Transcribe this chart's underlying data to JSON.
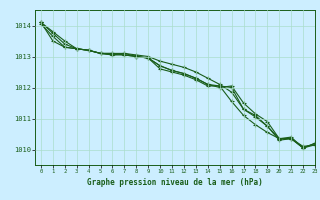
{
  "x": [
    0,
    1,
    2,
    3,
    4,
    5,
    6,
    7,
    8,
    9,
    10,
    11,
    12,
    13,
    14,
    15,
    16,
    17,
    18,
    19,
    20,
    21,
    22,
    23
  ],
  "line1": [
    1014.1,
    1013.8,
    1013.5,
    1013.25,
    1013.2,
    1013.1,
    1013.05,
    1013.1,
    1013.0,
    1012.95,
    1012.6,
    1012.5,
    1012.4,
    1012.25,
    1012.05,
    1012.05,
    1012.0,
    1011.3,
    1011.1,
    1010.75,
    1010.3,
    1010.35,
    1010.1,
    1010.15
  ],
  "line2": [
    1014.1,
    1013.75,
    1013.4,
    1013.25,
    1013.2,
    1013.1,
    1013.05,
    1013.05,
    1013.0,
    1012.95,
    1012.7,
    1012.55,
    1012.45,
    1012.3,
    1012.1,
    1012.0,
    1012.05,
    1011.5,
    1011.15,
    1010.9,
    1010.35,
    1010.35,
    1010.05,
    1010.2
  ],
  "line3": [
    1014.05,
    1013.65,
    1013.3,
    1013.25,
    1013.2,
    1013.1,
    1013.1,
    1013.1,
    1013.05,
    1013.0,
    1012.85,
    1012.75,
    1012.65,
    1012.5,
    1012.3,
    1012.1,
    1011.85,
    1011.3,
    1011.05,
    1010.75,
    1010.35,
    1010.4,
    1010.05,
    1010.2
  ],
  "line4": [
    1014.1,
    1013.5,
    1013.3,
    1013.25,
    1013.2,
    1013.1,
    1013.1,
    1013.05,
    1013.0,
    1012.95,
    1012.7,
    1012.55,
    1012.45,
    1012.3,
    1012.1,
    1012.05,
    1011.55,
    1011.1,
    1010.8,
    1010.55,
    1010.35,
    1010.35,
    1010.05,
    1010.15
  ],
  "bg_color": "#cceeff",
  "grid_color": "#aaddcc",
  "line_color": "#1a5e1a",
  "xlabel": "Graphe pression niveau de la mer (hPa)",
  "ylim_min": 1009.5,
  "ylim_max": 1014.5,
  "xlim_min": -0.5,
  "xlim_max": 23,
  "yticks": [
    1010,
    1011,
    1012,
    1013,
    1014
  ],
  "xticks": [
    0,
    1,
    2,
    3,
    4,
    5,
    6,
    7,
    8,
    9,
    10,
    11,
    12,
    13,
    14,
    15,
    16,
    17,
    18,
    19,
    20,
    21,
    22,
    23
  ]
}
